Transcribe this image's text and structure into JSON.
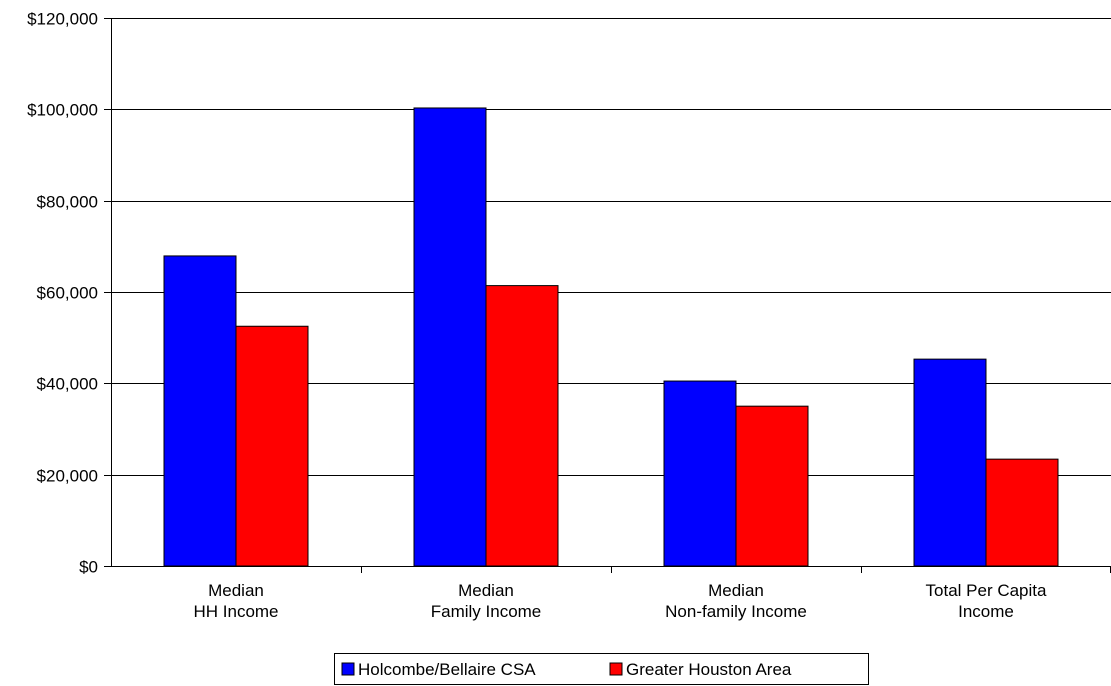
{
  "chart_data": {
    "type": "bar",
    "title": "",
    "xlabel": "",
    "ylabel": "",
    "categories": [
      [
        "Median",
        "HH Income"
      ],
      [
        "Median",
        "Family Income"
      ],
      [
        "Median",
        "Non-family Income"
      ],
      [
        "Total Per Capita",
        "Income"
      ]
    ],
    "series": [
      {
        "name": "Holcombe/Bellaire CSA",
        "color": "#0000ff",
        "values": [
          67900,
          100300,
          40500,
          45300
        ]
      },
      {
        "name": "Greater Houston Area",
        "color": "#ff0000",
        "values": [
          52500,
          61400,
          35000,
          23400
        ]
      }
    ],
    "ylim": [
      0,
      120000
    ],
    "yticks": [
      0,
      20000,
      40000,
      60000,
      80000,
      100000,
      120000
    ],
    "ytick_labels": [
      "$0",
      "$20,000",
      "$40,000",
      "$60,000",
      "$80,000",
      "$100,000",
      "$120,000"
    ],
    "grid": true,
    "legend_position": "bottom"
  }
}
